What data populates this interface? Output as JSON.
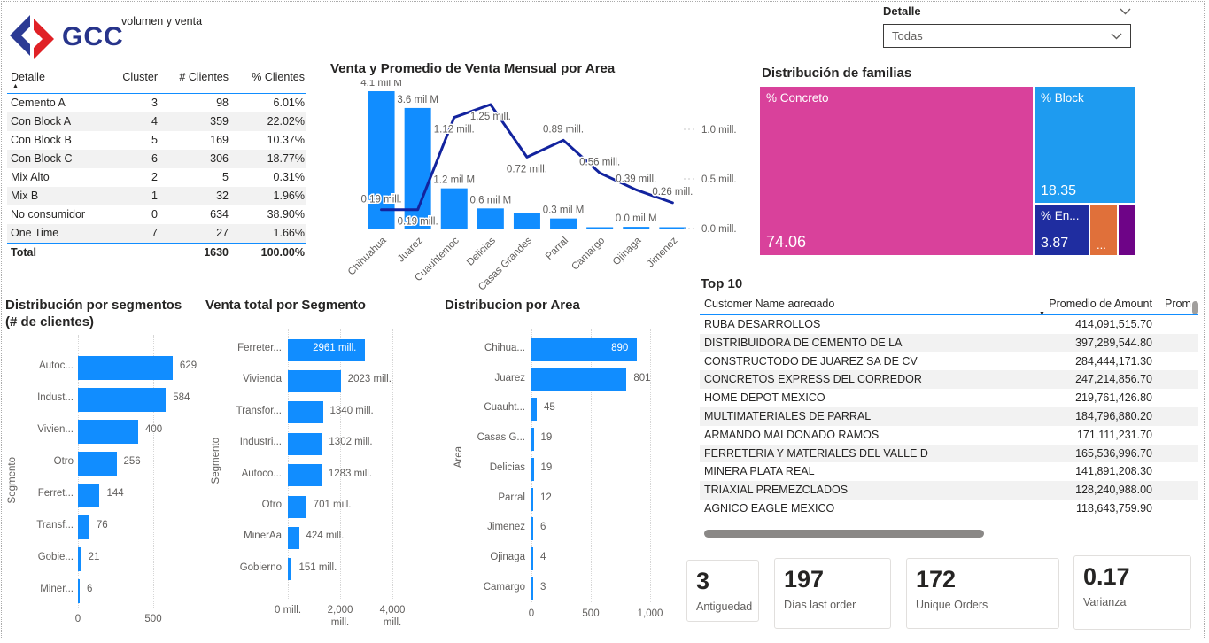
{
  "header": {
    "logo_text": "GCC",
    "page_title": "volumen y venta",
    "slicer": {
      "label": "Detalle",
      "value": "Todas"
    }
  },
  "cluster_table": {
    "columns": [
      "Detalle",
      "Cluster",
      "# Clientes",
      "% Clientes"
    ],
    "rows": [
      [
        "Cemento A",
        "3",
        "98",
        "6.01%"
      ],
      [
        "Con Block A",
        "4",
        "359",
        "22.02%"
      ],
      [
        "Con Block B",
        "5",
        "169",
        "10.37%"
      ],
      [
        "Con Block C",
        "6",
        "306",
        "18.77%"
      ],
      [
        "Mix Alto",
        "2",
        "5",
        "0.31%"
      ],
      [
        "Mix B",
        "1",
        "32",
        "1.96%"
      ],
      [
        "No consumidor",
        "0",
        "634",
        "38.90%"
      ],
      [
        "One Time",
        "7",
        "27",
        "1.66%"
      ]
    ],
    "total": [
      "Total",
      "",
      "1630",
      "100.00%"
    ]
  },
  "top10": {
    "title": "Top 10",
    "columns": [
      "Customer Name agregado",
      "Promedio de Amount",
      "Prom"
    ],
    "rows": [
      [
        "RUBA DESARROLLOS",
        "414,091,515.70"
      ],
      [
        "DISTRIBUIDORA DE CEMENTO DE LA",
        "397,289,544.80"
      ],
      [
        "CONSTRUCTODO DE JUAREZ SA DE CV",
        "284,444,171.30"
      ],
      [
        "CONCRETOS EXPRESS DEL CORREDOR",
        "247,214,856.70"
      ],
      [
        "HOME DEPOT MEXICO",
        "219,761,426.80"
      ],
      [
        "MULTIMATERIALES DE PARRAL",
        "184,796,880.20"
      ],
      [
        "ARMANDO MALDONADO RAMOS",
        "171,111,231.70"
      ],
      [
        "FERRETERIA Y MATERIALES DEL VALLE D",
        "165,536,996.70"
      ],
      [
        "MINERA PLATA REAL",
        "141,891,208.30"
      ],
      [
        "TRIAXIAL PREMEZCLADOS",
        "128,240,988.00"
      ],
      [
        "AGNICO EAGLE MEXICO",
        "118,643,759.90"
      ]
    ]
  },
  "kpis": [
    {
      "value": "3",
      "label": "Antiguedad"
    },
    {
      "value": "197",
      "label": "Días last order"
    },
    {
      "value": "172",
      "label": "Unique Orders"
    },
    {
      "value": "0.17",
      "label": "Varianza"
    }
  ],
  "colors": {
    "bar_blue": "#118DFF",
    "line_navy": "#12239E",
    "axis_gray": "#605e5c"
  },
  "chart_data": [
    {
      "type": "bar",
      "variant": "combo-bar-line",
      "title": "Venta y Promedio de Venta Mensual por Area",
      "categories": [
        "Chihuahua",
        "Juarez",
        "Cuauhtemoc",
        "Delicias",
        "Casas Grandes",
        "Parral",
        "Camargo",
        "Ojinaga",
        "Jimenez"
      ],
      "series": [
        {
          "name": "Venta (mil M)",
          "type": "bar",
          "values": [
            4.1,
            3.6,
            1.2,
            0.6,
            0.45,
            0.3,
            0.04,
            0.05,
            0.04
          ],
          "data_labels": [
            "4.1 mil M",
            "3.6 mil M",
            "1.2 mil M",
            "0.6 mil M",
            "",
            "0.3 mil M",
            "",
            "0.0 mil M",
            ""
          ]
        },
        {
          "name": "Promedio de venta mensual (mill.)",
          "type": "line",
          "values": [
            0.19,
            0.19,
            1.12,
            1.25,
            0.72,
            0.89,
            0.56,
            0.39,
            0.26
          ],
          "data_labels": [
            "0.19 mill.",
            "0.19 mill.",
            "1.12 mill.",
            "1.25 mill.",
            "0.72 mill.",
            "0.89 mill.",
            "0.56 mill.",
            "0.39 mill.",
            "0.26 mill."
          ]
        }
      ],
      "y2_ticks": [
        "1.0 mill.",
        "0.5 mill.",
        "0.0 mill."
      ],
      "y2_range": [
        0,
        1.41
      ],
      "y_range": [
        0,
        4.18
      ],
      "legend": "off"
    },
    {
      "type": "pie",
      "variant": "treemap",
      "title": "Distribución de familias",
      "segments": [
        {
          "label": "% Concreto",
          "value": 74.06,
          "value_label": "74.06",
          "color": "#D9419B"
        },
        {
          "label": "% Block",
          "value": 18.35,
          "value_label": "18.35",
          "color": "#1E9BF0"
        },
        {
          "label": "% En...",
          "value": 3.87,
          "value_label": "3.87",
          "color": "#1F2DA0"
        },
        {
          "label": "",
          "value": 2.4,
          "value_label": "...",
          "color": "#E0703A"
        },
        {
          "label": "",
          "value": 1.3,
          "value_label": "",
          "color": "#6E0487"
        }
      ]
    },
    {
      "type": "bar",
      "orientation": "horizontal",
      "title": "Distribución por segmentos",
      "subtitle": "(# de clientes)",
      "ylabel": "Segmento",
      "categories": [
        "Autoc...",
        "Indust...",
        "Vivien...",
        "Otro",
        "Ferret...",
        "Transf...",
        "Gobie...",
        "Miner..."
      ],
      "values": [
        629,
        584,
        400,
        256,
        144,
        76,
        21,
        6
      ],
      "value_labels": [
        "629",
        "584",
        "400",
        "256",
        "144",
        "76",
        "21",
        "6"
      ],
      "x_ticks": [
        {
          "value": 0,
          "label": "0"
        },
        {
          "value": 500,
          "label": "500"
        }
      ],
      "xlim": [
        0,
        630
      ]
    },
    {
      "type": "bar",
      "orientation": "horizontal",
      "title": "Venta total por Segmento",
      "ylabel": "Segmento",
      "categories": [
        "Ferreter...",
        "Vivienda",
        "Transfor...",
        "Industri...",
        "Autoco...",
        "Otro",
        "MinerÃa",
        "Gobierno"
      ],
      "values": [
        2961,
        2023,
        1340,
        1302,
        1283,
        701,
        424,
        151
      ],
      "value_labels": [
        "2961 mill.",
        "2023 mill.",
        "1340 mill.",
        "1302 mill.",
        "1283 mill.",
        "701 mill.",
        "424 mill.",
        "151 mill."
      ],
      "x_ticks": [
        {
          "value": 0,
          "label": "0 mill."
        },
        {
          "value": 2000,
          "label": "2,000\nmill."
        },
        {
          "value": 4000,
          "label": "4,000\nmill."
        }
      ],
      "xlim": [
        0,
        4000
      ]
    },
    {
      "type": "bar",
      "orientation": "horizontal",
      "title": "Distribucion por Area",
      "ylabel": "Area",
      "categories": [
        "Chihua...",
        "Juarez",
        "Cuauht...",
        "Casas G...",
        "Delicias",
        "Parral",
        "Jimenez",
        "Ojinaga",
        "Camargo"
      ],
      "values": [
        890,
        801,
        45,
        19,
        19,
        12,
        6,
        4,
        3
      ],
      "value_labels": [
        "890",
        "801",
        "45",
        "19",
        "19",
        "12",
        "6",
        "4",
        "3"
      ],
      "x_ticks": [
        {
          "value": 0,
          "label": "0"
        },
        {
          "value": 500,
          "label": "500"
        },
        {
          "value": 1000,
          "label": "1,000"
        }
      ],
      "xlim": [
        0,
        1000
      ]
    }
  ]
}
